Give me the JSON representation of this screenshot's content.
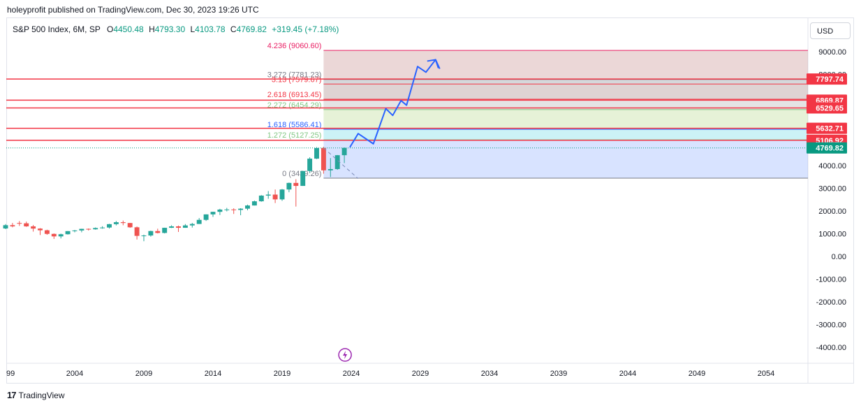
{
  "header": {
    "publisher": "holeyprofit published on TradingView.com, Dec 30, 2023 19:26 UTC"
  },
  "legend": {
    "symbol": "S&P 500 Index, 6M, SP",
    "open_label": "O",
    "open": "4450.48",
    "high_label": "H",
    "high": "4793.30",
    "low_label": "L",
    "low": "4103.78",
    "close_label": "C",
    "close": "4769.82",
    "change": "+319.45 (+7.18%)"
  },
  "currency_button": "USD",
  "footer": {
    "brand": "TradingView"
  },
  "colors": {
    "up": "#26a69a",
    "down": "#ef5350",
    "fib_red": "#f23645",
    "projection": "#2962ff",
    "accent_purple": "#9c27b0"
  },
  "chart_data": {
    "type": "candlestick",
    "interval": "6M",
    "y_axis": {
      "ticks": [
        "9000.00",
        "8000.00",
        "4000.00",
        "3000.00",
        "2000.00",
        "1000.00",
        "0.00",
        "-1000.00",
        "-2000.00",
        "-3000.00",
        "-4000.00"
      ],
      "range": [
        -4500,
        10000
      ]
    },
    "x_axis": {
      "ticks": [
        "99",
        "2004",
        "2009",
        "2014",
        "2019",
        "2024",
        "2029",
        "2034",
        "2039",
        "2044",
        "2049",
        "2054"
      ],
      "range": [
        1999,
        2057
      ]
    },
    "candles": [
      {
        "t": 1999.0,
        "o": 1229,
        "h": 1420,
        "l": 1200,
        "c": 1373
      },
      {
        "t": 1999.5,
        "o": 1373,
        "h": 1470,
        "l": 1280,
        "c": 1320
      },
      {
        "t": 2000.0,
        "o": 1469,
        "h": 1553,
        "l": 1340,
        "c": 1455
      },
      {
        "t": 2000.5,
        "o": 1455,
        "h": 1530,
        "l": 1300,
        "c": 1320
      },
      {
        "t": 2001.0,
        "o": 1320,
        "h": 1383,
        "l": 1090,
        "c": 1224
      },
      {
        "t": 2001.5,
        "o": 1224,
        "h": 1245,
        "l": 940,
        "c": 1148
      },
      {
        "t": 2002.0,
        "o": 1148,
        "h": 1175,
        "l": 950,
        "c": 990
      },
      {
        "t": 2002.5,
        "o": 990,
        "h": 1010,
        "l": 770,
        "c": 880
      },
      {
        "t": 2003.0,
        "o": 880,
        "h": 1000,
        "l": 790,
        "c": 975
      },
      {
        "t": 2003.5,
        "o": 975,
        "h": 1112,
        "l": 960,
        "c": 1112
      },
      {
        "t": 2004.0,
        "o": 1112,
        "h": 1163,
        "l": 1060,
        "c": 1140
      },
      {
        "t": 2004.5,
        "o": 1140,
        "h": 1217,
        "l": 1060,
        "c": 1212
      },
      {
        "t": 2005.0,
        "o": 1212,
        "h": 1230,
        "l": 1137,
        "c": 1191
      },
      {
        "t": 2005.5,
        "o": 1191,
        "h": 1275,
        "l": 1175,
        "c": 1248
      },
      {
        "t": 2006.0,
        "o": 1248,
        "h": 1326,
        "l": 1219,
        "c": 1270
      },
      {
        "t": 2006.5,
        "o": 1270,
        "h": 1431,
        "l": 1224,
        "c": 1418
      },
      {
        "t": 2007.0,
        "o": 1418,
        "h": 1556,
        "l": 1363,
        "c": 1503
      },
      {
        "t": 2007.5,
        "o": 1503,
        "h": 1576,
        "l": 1370,
        "c": 1468
      },
      {
        "t": 2008.0,
        "o": 1468,
        "h": 1471,
        "l": 1256,
        "c": 1280
      },
      {
        "t": 2008.5,
        "o": 1280,
        "h": 1313,
        "l": 741,
        "c": 903
      },
      {
        "t": 2009.0,
        "o": 903,
        "h": 956,
        "l": 667,
        "c": 919
      },
      {
        "t": 2009.5,
        "o": 919,
        "h": 1130,
        "l": 869,
        "c": 1115
      },
      {
        "t": 2010.0,
        "o": 1115,
        "h": 1219,
        "l": 1011,
        "c": 1031
      },
      {
        "t": 2010.5,
        "o": 1031,
        "h": 1262,
        "l": 1010,
        "c": 1258
      },
      {
        "t": 2011.0,
        "o": 1258,
        "h": 1370,
        "l": 1249,
        "c": 1321
      },
      {
        "t": 2011.5,
        "o": 1321,
        "h": 1356,
        "l": 1075,
        "c": 1258
      },
      {
        "t": 2012.0,
        "o": 1258,
        "h": 1422,
        "l": 1258,
        "c": 1362
      },
      {
        "t": 2012.5,
        "o": 1362,
        "h": 1474,
        "l": 1267,
        "c": 1426
      },
      {
        "t": 2013.0,
        "o": 1426,
        "h": 1687,
        "l": 1426,
        "c": 1606
      },
      {
        "t": 2013.5,
        "o": 1606,
        "h": 1849,
        "l": 1560,
        "c": 1848
      },
      {
        "t": 2014.0,
        "o": 1848,
        "h": 1968,
        "l": 1737,
        "c": 1960
      },
      {
        "t": 2014.5,
        "o": 1960,
        "h": 2093,
        "l": 1820,
        "c": 2059
      },
      {
        "t": 2015.0,
        "o": 2059,
        "h": 2134,
        "l": 1980,
        "c": 2063
      },
      {
        "t": 2015.5,
        "o": 2063,
        "h": 2116,
        "l": 1867,
        "c": 2044
      },
      {
        "t": 2016.0,
        "o": 2044,
        "h": 2120,
        "l": 1810,
        "c": 2099
      },
      {
        "t": 2016.5,
        "o": 2099,
        "h": 2278,
        "l": 2028,
        "c": 2239
      },
      {
        "t": 2017.0,
        "o": 2239,
        "h": 2453,
        "l": 2238,
        "c": 2423
      },
      {
        "t": 2017.5,
        "o": 2423,
        "h": 2694,
        "l": 2406,
        "c": 2674
      },
      {
        "t": 2018.0,
        "o": 2674,
        "h": 2873,
        "l": 2533,
        "c": 2718
      },
      {
        "t": 2018.5,
        "o": 2718,
        "h": 2941,
        "l": 2346,
        "c": 2507
      },
      {
        "t": 2019.0,
        "o": 2507,
        "h": 2964,
        "l": 2443,
        "c": 2942
      },
      {
        "t": 2019.5,
        "o": 2942,
        "h": 3247,
        "l": 2822,
        "c": 3231
      },
      {
        "t": 2020.0,
        "o": 3231,
        "h": 3394,
        "l": 2192,
        "c": 3100
      },
      {
        "t": 2020.5,
        "o": 3100,
        "h": 3760,
        "l": 3100,
        "c": 3756
      },
      {
        "t": 2021.0,
        "o": 3756,
        "h": 4360,
        "l": 3662,
        "c": 4298
      },
      {
        "t": 2021.5,
        "o": 4298,
        "h": 4808,
        "l": 4278,
        "c": 4766
      },
      {
        "t": 2022.0,
        "o": 4766,
        "h": 4818,
        "l": 3637,
        "c": 3785
      },
      {
        "t": 2022.5,
        "o": 3785,
        "h": 4325,
        "l": 3492,
        "c": 3840
      },
      {
        "t": 2023.0,
        "o": 3840,
        "h": 4458,
        "l": 3808,
        "c": 4450
      },
      {
        "t": 2023.5,
        "o": 4450,
        "h": 4793,
        "l": 4104,
        "c": 4770
      }
    ],
    "fib_extension": {
      "x_start": 2022.0,
      "levels": [
        {
          "ratio": "0",
          "price": 3439.26,
          "label": "0 (3439.26)",
          "color": "#787b86"
        },
        {
          "ratio": "1.272",
          "price": 5127.25,
          "label": "1.272 (5127.25)",
          "color": "#81c784"
        },
        {
          "ratio": "1.618",
          "price": 5586.41,
          "label": "1.618 (5586.41)",
          "color": "#2962ff"
        },
        {
          "ratio": "2.272",
          "price": 6454.29,
          "label": "2.272 (6454.29)",
          "color": "#81c784"
        },
        {
          "ratio": "2.618",
          "price": 6913.45,
          "label": "2.618 (6913.45)",
          "color": "#f23645"
        },
        {
          "ratio": "3.13",
          "price": 7579.67,
          "label": "3.13 (7579.67)",
          "color": "#f23645"
        },
        {
          "ratio": "3.272",
          "price": 7781.23,
          "label": "3.272 (7781.23)",
          "color": "#787b86"
        },
        {
          "ratio": "4.236",
          "price": 9060.6,
          "label": "4.236 (9060.60)",
          "color": "#e91e63"
        }
      ]
    },
    "horizontal_lines": [
      7797.74,
      6869.87,
      6529.65,
      5632.71,
      5106.92
    ],
    "price_tags": [
      {
        "value": 7797.74,
        "label": "7797.74",
        "color": "#f23645"
      },
      {
        "value": 6869.87,
        "label": "6869.87",
        "color": "#f23645"
      },
      {
        "value": 6529.65,
        "label": "6529.65",
        "color": "#f23645"
      },
      {
        "value": 5632.71,
        "label": "5632.71",
        "color": "#f23645"
      },
      {
        "value": 5106.92,
        "label": "5106.92",
        "color": "#f23645"
      },
      {
        "value": 4769.82,
        "label": "4769.82",
        "color": "#089981"
      }
    ],
    "last_price": 4769.82,
    "projection_path": [
      [
        2023.9,
        4800
      ],
      [
        2024.5,
        5400
      ],
      [
        2025.6,
        4950
      ],
      [
        2026.5,
        6500
      ],
      [
        2027.0,
        6200
      ],
      [
        2027.6,
        6850
      ],
      [
        2028.0,
        6650
      ],
      [
        2028.8,
        8350
      ],
      [
        2029.4,
        8100
      ],
      [
        2030.1,
        8650
      ],
      [
        2030.4,
        8250
      ]
    ],
    "dashed_projection": [
      [
        2022.0,
        4770
      ],
      [
        2024.5,
        3420
      ]
    ],
    "event_marker": {
      "t": 2023.5,
      "icon": "lightning-bolt"
    }
  }
}
